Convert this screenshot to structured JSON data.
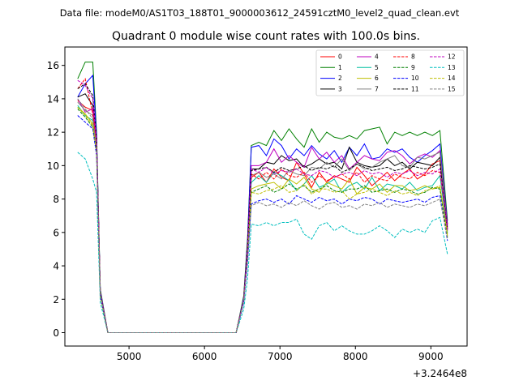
{
  "chart_data": {
    "type": "line",
    "suptitle": "Data file: modeM0/AS1T03_188T01_9000003612_24591cztM0_level2_quad_clean.evt",
    "title": "Quadrant 0 module wise count rates with 100.0s bins.",
    "xlabel": "",
    "ylabel": "",
    "x_offset_label": "+3.2464e8",
    "xlim": [
      4150,
      9480
    ],
    "ylim": [
      -0.8,
      17.1
    ],
    "xticks": [
      5000,
      6000,
      7000,
      8000,
      9000
    ],
    "yticks": [
      0,
      2,
      4,
      6,
      8,
      10,
      12,
      14,
      16
    ],
    "legend": {
      "position": "top-right",
      "columns": 4
    },
    "x": [
      4320,
      4420,
      4520,
      4570,
      4620,
      4720,
      4820,
      4920,
      5020,
      5120,
      5220,
      5320,
      5420,
      5520,
      5620,
      5720,
      5820,
      5920,
      6020,
      6120,
      6220,
      6320,
      6420,
      6520,
      6570,
      6620,
      6720,
      6820,
      6920,
      7020,
      7120,
      7220,
      7320,
      7420,
      7520,
      7620,
      7720,
      7820,
      7920,
      8020,
      8120,
      8220,
      8320,
      8420,
      8520,
      8620,
      8720,
      8820,
      8920,
      9020,
      9120,
      9220
    ],
    "series": [
      {
        "name": "0",
        "color": "#ff0000",
        "dash": "solid",
        "values": [
          13.9,
          13.5,
          13.3,
          11.2,
          2.3,
          0,
          0,
          0,
          0,
          0,
          0,
          0,
          0,
          0,
          0,
          0,
          0,
          0,
          0,
          0,
          0,
          0,
          0,
          1.9,
          4.8,
          9.3,
          9.6,
          9.0,
          9.8,
          9.3,
          9.1,
          10.2,
          9.5,
          8.7,
          9.6,
          9.0,
          9.4,
          9.2,
          9.0,
          9.9,
          9.4,
          8.8,
          9.2,
          9.6,
          9.1,
          9.5,
          9.8,
          9.2,
          9.5,
          10.1,
          10.3,
          6.5
        ]
      },
      {
        "name": "1",
        "color": "#008000",
        "dash": "solid",
        "values": [
          15.2,
          16.2,
          16.2,
          12.0,
          2.6,
          0,
          0,
          0,
          0,
          0,
          0,
          0,
          0,
          0,
          0,
          0,
          0,
          0,
          0,
          0,
          0,
          0,
          0,
          2.2,
          5.6,
          11.2,
          11.4,
          11.2,
          12.1,
          11.5,
          12.2,
          11.6,
          11.1,
          12.2,
          11.4,
          12.0,
          11.7,
          11.6,
          11.8,
          11.6,
          12.1,
          12.2,
          12.3,
          11.3,
          12.0,
          11.8,
          12.0,
          11.8,
          12.0,
          11.8,
          12.1,
          6.7
        ]
      },
      {
        "name": "2",
        "color": "#0000ff",
        "dash": "solid",
        "values": [
          14.1,
          14.9,
          15.4,
          11.8,
          2.5,
          0,
          0,
          0,
          0,
          0,
          0,
          0,
          0,
          0,
          0,
          0,
          0,
          0,
          0,
          0,
          0,
          0,
          0,
          2.1,
          5.4,
          11.1,
          11.2,
          10.6,
          11.6,
          11.2,
          10.4,
          11.0,
          10.6,
          11.2,
          10.7,
          10.4,
          10.9,
          10.2,
          11.1,
          10.6,
          11.3,
          10.4,
          10.5,
          11.0,
          10.8,
          11.0,
          10.5,
          10.2,
          10.6,
          10.9,
          11.3,
          6.5
        ]
      },
      {
        "name": "3",
        "color": "#000000",
        "dash": "solid",
        "values": [
          14.1,
          14.3,
          13.6,
          11.5,
          2.4,
          0,
          0,
          0,
          0,
          0,
          0,
          0,
          0,
          0,
          0,
          0,
          0,
          0,
          0,
          0,
          0,
          0,
          0,
          2.0,
          5.2,
          9.8,
          9.8,
          10.2,
          10.1,
          10.6,
          10.3,
          10.4,
          9.9,
          10.1,
          10.4,
          10.1,
          10.2,
          9.8,
          11.1,
          10.2,
          10.0,
          9.9,
          10.0,
          10.4,
          10.0,
          10.2,
          9.8,
          10.2,
          10.1,
          10.0,
          10.5,
          6.3
        ]
      },
      {
        "name": "4",
        "color": "#bf00bf",
        "dash": "solid",
        "values": [
          14.0,
          13.2,
          13.4,
          11.4,
          2.4,
          0,
          0,
          0,
          0,
          0,
          0,
          0,
          0,
          0,
          0,
          0,
          0,
          0,
          0,
          0,
          0,
          0,
          0,
          2.0,
          5.1,
          10.0,
          10.0,
          10.2,
          11.0,
          10.2,
          10.6,
          10.2,
          9.9,
          11.1,
          10.4,
          10.8,
          10.2,
          10.6,
          9.8,
          10.2,
          10.6,
          10.4,
          10.3,
          10.8,
          10.9,
          10.6,
          10.1,
          10.5,
          10.7,
          10.5,
          10.9,
          6.4
        ]
      },
      {
        "name": "5",
        "color": "#00bfa0",
        "dash": "solid",
        "values": [
          13.6,
          13.0,
          12.7,
          11.0,
          2.3,
          0,
          0,
          0,
          0,
          0,
          0,
          0,
          0,
          0,
          0,
          0,
          0,
          0,
          0,
          0,
          0,
          0,
          0,
          1.9,
          4.8,
          9.0,
          9.4,
          9.0,
          9.6,
          9.4,
          9.1,
          8.5,
          8.9,
          9.4,
          8.7,
          8.9,
          9.2,
          8.4,
          8.8,
          9.0,
          8.6,
          9.3,
          8.5,
          8.9,
          8.8,
          8.6,
          9.0,
          8.5,
          8.7,
          8.8,
          9.4,
          6.0
        ]
      },
      {
        "name": "6",
        "color": "#bfbf00",
        "dash": "solid",
        "values": [
          13.5,
          13.1,
          12.5,
          10.9,
          2.3,
          0,
          0,
          0,
          0,
          0,
          0,
          0,
          0,
          0,
          0,
          0,
          0,
          0,
          0,
          0,
          0,
          0,
          0,
          1.9,
          4.6,
          8.6,
          8.8,
          8.9,
          9.0,
          8.6,
          9.2,
          8.9,
          9.3,
          8.6,
          8.4,
          9.0,
          8.8,
          8.6,
          9.2,
          8.3,
          8.7,
          8.6,
          8.9,
          8.4,
          8.8,
          8.8,
          8.5,
          8.6,
          8.8,
          8.6,
          8.7,
          5.9
        ]
      },
      {
        "name": "7",
        "color": "#808080",
        "dash": "solid",
        "values": [
          13.8,
          13.3,
          13.0,
          11.1,
          2.3,
          0,
          0,
          0,
          0,
          0,
          0,
          0,
          0,
          0,
          0,
          0,
          0,
          0,
          0,
          0,
          0,
          0,
          0,
          2.0,
          4.9,
          9.4,
          9.6,
          9.3,
          9.5,
          9.2,
          9.7,
          9.5,
          9.4,
          9.9,
          9.8,
          10.2,
          9.9,
          10.4,
          9.7,
          10.1,
          9.8,
          9.9,
          10.2,
          10.4,
          10.6,
          10.0,
          9.9,
          10.5,
          10.4,
          10.6,
          10.8,
          6.1
        ]
      },
      {
        "name": "8",
        "color": "#ff0000",
        "dash": "dashed",
        "values": [
          14.6,
          15.2,
          13.1,
          11.3,
          2.4,
          0,
          0,
          0,
          0,
          0,
          0,
          0,
          0,
          0,
          0,
          0,
          0,
          0,
          0,
          0,
          0,
          0,
          0,
          2.0,
          5.0,
          9.5,
          9.2,
          9.6,
          9.2,
          9.8,
          9.4,
          9.3,
          9.6,
          9.0,
          9.4,
          9.1,
          9.3,
          9.5,
          9.2,
          9.6,
          9.0,
          9.4,
          9.2,
          9.1,
          9.5,
          9.3,
          9.2,
          9.6,
          9.4,
          9.7,
          9.6,
          6.2
        ]
      },
      {
        "name": "9",
        "color": "#008000",
        "dash": "dashed",
        "values": [
          13.4,
          12.9,
          12.3,
          10.8,
          2.2,
          0,
          0,
          0,
          0,
          0,
          0,
          0,
          0,
          0,
          0,
          0,
          0,
          0,
          0,
          0,
          0,
          0,
          0,
          1.9,
          4.6,
          8.4,
          8.6,
          8.8,
          8.4,
          8.6,
          8.9,
          8.6,
          8.8,
          8.4,
          8.6,
          8.8,
          8.5,
          8.4,
          8.6,
          8.6,
          8.8,
          8.4,
          8.5,
          8.6,
          8.4,
          8.6,
          8.5,
          8.3,
          8.4,
          8.7,
          8.6,
          5.7
        ]
      },
      {
        "name": "10",
        "color": "#0000ff",
        "dash": "dashed",
        "values": [
          13.0,
          12.6,
          12.2,
          10.6,
          2.2,
          0,
          0,
          0,
          0,
          0,
          0,
          0,
          0,
          0,
          0,
          0,
          0,
          0,
          0,
          0,
          0,
          0,
          0,
          1.8,
          4.2,
          7.7,
          7.9,
          8.0,
          7.8,
          8.0,
          7.7,
          8.2,
          8.0,
          7.8,
          8.1,
          7.9,
          8.0,
          7.7,
          8.0,
          7.9,
          8.1,
          8.0,
          7.7,
          8.0,
          7.9,
          7.8,
          7.9,
          8.0,
          7.8,
          8.1,
          8.2,
          5.5
        ]
      },
      {
        "name": "11",
        "color": "#000000",
        "dash": "dashed",
        "values": [
          14.6,
          14.9,
          14.2,
          11.6,
          2.4,
          0,
          0,
          0,
          0,
          0,
          0,
          0,
          0,
          0,
          0,
          0,
          0,
          0,
          0,
          0,
          0,
          0,
          0,
          2.0,
          5.0,
          9.7,
          9.8,
          9.9,
          9.6,
          9.9,
          9.7,
          9.8,
          10.0,
          9.7,
          9.9,
          9.8,
          10.0,
          9.6,
          9.8,
          10.1,
          9.9,
          9.7,
          9.8,
          9.9,
          9.7,
          9.8,
          10.0,
          9.9,
          9.8,
          9.9,
          10.1,
          6.2
        ]
      },
      {
        "name": "12",
        "color": "#bf00bf",
        "dash": "dashed",
        "values": [
          15.1,
          14.8,
          14.0,
          11.5,
          2.4,
          0,
          0,
          0,
          0,
          0,
          0,
          0,
          0,
          0,
          0,
          0,
          0,
          0,
          0,
          0,
          0,
          0,
          0,
          2.0,
          4.9,
          9.8,
          9.6,
          9.9,
          9.5,
          9.7,
          9.6,
          9.8,
          9.5,
          9.4,
          9.7,
          9.6,
          9.3,
          9.5,
          9.6,
          9.4,
          9.7,
          9.5,
          9.6,
          9.3,
          9.6,
          9.5,
          9.7,
          9.4,
          9.6,
          9.5,
          9.8,
          6.1
        ]
      },
      {
        "name": "13",
        "color": "#00bfbf",
        "dash": "dashed",
        "values": [
          10.8,
          10.4,
          9.2,
          8.4,
          1.8,
          0,
          0,
          0,
          0,
          0,
          0,
          0,
          0,
          0,
          0,
          0,
          0,
          0,
          0,
          0,
          0,
          0,
          0,
          1.4,
          3.2,
          6.5,
          6.4,
          6.6,
          6.4,
          6.6,
          6.6,
          6.8,
          5.9,
          5.6,
          6.4,
          6.6,
          6.1,
          6.4,
          6.1,
          5.9,
          5.9,
          6.1,
          6.4,
          6.1,
          5.7,
          6.2,
          6.0,
          6.2,
          6.0,
          6.7,
          6.9,
          4.7
        ]
      },
      {
        "name": "14",
        "color": "#bfbf00",
        "dash": "dashed",
        "values": [
          13.5,
          13.0,
          12.4,
          10.8,
          2.2,
          0,
          0,
          0,
          0,
          0,
          0,
          0,
          0,
          0,
          0,
          0,
          0,
          0,
          0,
          0,
          0,
          0,
          0,
          1.9,
          4.5,
          8.4,
          8.3,
          8.5,
          8.6,
          8.8,
          8.4,
          8.5,
          8.9,
          8.3,
          8.6,
          8.6,
          8.4,
          8.5,
          8.0,
          8.3,
          8.4,
          8.6,
          8.4,
          8.2,
          8.5,
          8.3,
          8.4,
          8.2,
          8.5,
          8.6,
          8.8,
          5.8
        ]
      },
      {
        "name": "15",
        "color": "#808080",
        "dash": "dashed",
        "values": [
          14.0,
          13.4,
          12.8,
          11.0,
          2.3,
          0,
          0,
          0,
          0,
          0,
          0,
          0,
          0,
          0,
          0,
          0,
          0,
          0,
          0,
          0,
          0,
          0,
          0,
          1.9,
          4.4,
          7.6,
          7.8,
          7.6,
          7.7,
          7.5,
          7.8,
          7.6,
          7.9,
          7.6,
          7.4,
          7.7,
          7.8,
          7.5,
          7.6,
          7.4,
          7.7,
          7.6,
          7.8,
          7.5,
          7.7,
          7.6,
          7.5,
          7.7,
          7.6,
          7.8,
          8.0,
          5.6
        ]
      }
    ]
  }
}
